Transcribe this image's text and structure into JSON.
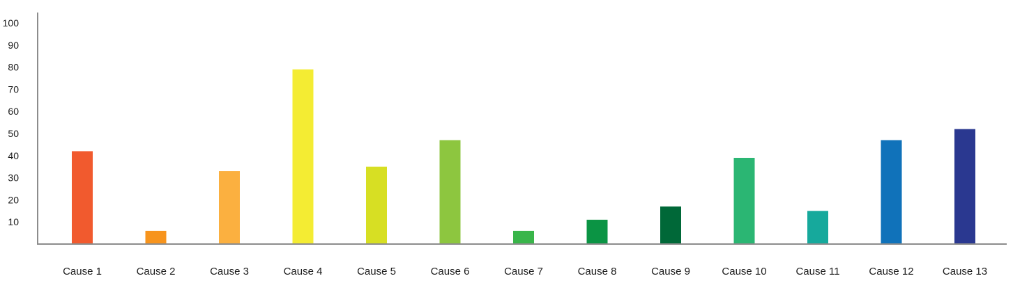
{
  "chart_data": {
    "type": "bar",
    "categories": [
      "Cause 1",
      "Cause 2",
      "Cause 3",
      "Cause 4",
      "Cause 5",
      "Cause 6",
      "Cause 7",
      "Cause 8",
      "Cause 9",
      "Cause 10",
      "Cause 11",
      "Cause 12",
      "Cause 13"
    ],
    "values": [
      42,
      6,
      33,
      79,
      35,
      47,
      6,
      11,
      17,
      39,
      15,
      47,
      52
    ],
    "colors": [
      "#f15a2e",
      "#f7941d",
      "#fbb040",
      "#f4ec33",
      "#d7df23",
      "#8dc63f",
      "#39b54a",
      "#0b9444",
      "#006838",
      "#2bb673",
      "#16a99c",
      "#1072ba",
      "#2a3890"
    ],
    "title": "",
    "xlabel": "",
    "ylabel": "",
    "ylim": [
      0,
      100
    ],
    "yticks": [
      "10",
      "20",
      "30",
      "40",
      "50",
      "60",
      "70",
      "80",
      "90",
      "100"
    ],
    "grid": false,
    "legend": "none"
  }
}
